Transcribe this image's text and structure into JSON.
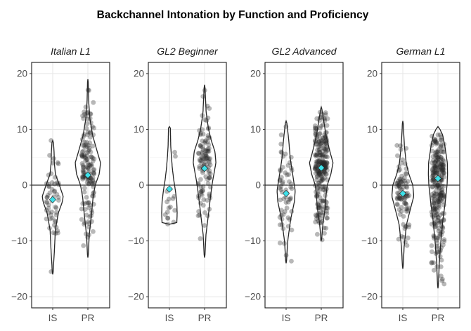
{
  "chart_data": {
    "type": "violin",
    "title": "Backchannel Intonation by Function and Proficiency",
    "categories": [
      "IS",
      "PR"
    ],
    "ylim": [
      -22,
      22
    ],
    "yticks": [
      -20,
      -10,
      0,
      10,
      20
    ],
    "reference_line": 0,
    "grid": true,
    "panels": [
      {
        "name": "Italian L1",
        "groups": [
          {
            "category": "IS",
            "min": -16,
            "max": 8,
            "mean": -2.6,
            "n": 55,
            "density": [
              [
                -16,
                0.02
              ],
              [
                -12,
                0.12
              ],
              [
                -8,
                0.2
              ],
              [
                -5,
                0.42
              ],
              [
                -3,
                0.72
              ],
              [
                -2,
                0.78
              ],
              [
                0,
                0.5
              ],
              [
                2,
                0.2
              ],
              [
                4,
                0.12
              ],
              [
                6,
                0.1
              ],
              [
                8,
                0.05
              ]
            ]
          },
          {
            "category": "PR",
            "min": -13,
            "max": 19,
            "mean": 1.8,
            "n": 150,
            "density": [
              [
                -13,
                0.02
              ],
              [
                -9,
                0.1
              ],
              [
                -5,
                0.28
              ],
              [
                -2,
                0.4
              ],
              [
                0,
                0.55
              ],
              [
                2,
                0.85
              ],
              [
                4,
                0.95
              ],
              [
                6,
                0.7
              ],
              [
                9,
                0.35
              ],
              [
                12,
                0.15
              ],
              [
                15,
                0.06
              ],
              [
                19,
                0.02
              ]
            ]
          }
        ]
      },
      {
        "name": "GL2 Beginner",
        "groups": [
          {
            "category": "IS",
            "min": -7,
            "max": 10.5,
            "mean": -0.7,
            "n": 16,
            "density": [
              [
                -7,
                0.55
              ],
              [
                -5,
                0.58
              ],
              [
                -3,
                0.55
              ],
              [
                -1,
                0.45
              ],
              [
                1,
                0.32
              ],
              [
                3,
                0.22
              ],
              [
                5,
                0.15
              ],
              [
                7,
                0.1
              ],
              [
                9,
                0.08
              ],
              [
                10.5,
                0.07
              ]
            ]
          },
          {
            "category": "PR",
            "min": -13,
            "max": 18,
            "mean": 3.0,
            "n": 110,
            "density": [
              [
                -13,
                0.02
              ],
              [
                -9,
                0.1
              ],
              [
                -5,
                0.3
              ],
              [
                -2,
                0.45
              ],
              [
                0,
                0.55
              ],
              [
                2,
                0.7
              ],
              [
                4,
                0.85
              ],
              [
                6,
                0.78
              ],
              [
                8,
                0.5
              ],
              [
                10,
                0.3
              ],
              [
                13,
                0.12
              ],
              [
                18,
                0.02
              ]
            ]
          }
        ]
      },
      {
        "name": "GL2 Advanced",
        "groups": [
          {
            "category": "IS",
            "min": -14,
            "max": 11.5,
            "mean": -1.5,
            "n": 60,
            "density": [
              [
                -14,
                0.02
              ],
              [
                -10,
                0.12
              ],
              [
                -6,
                0.35
              ],
              [
                -3,
                0.62
              ],
              [
                -1,
                0.68
              ],
              [
                1,
                0.55
              ],
              [
                3,
                0.42
              ],
              [
                5,
                0.3
              ],
              [
                8,
                0.2
              ],
              [
                11.5,
                0.04
              ]
            ]
          },
          {
            "category": "PR",
            "min": -10,
            "max": 14,
            "mean": 3.1,
            "n": 240,
            "density": [
              [
                -10,
                0.02
              ],
              [
                -7,
                0.12
              ],
              [
                -4,
                0.3
              ],
              [
                -2,
                0.35
              ],
              [
                0,
                0.45
              ],
              [
                2,
                0.72
              ],
              [
                4,
                0.88
              ],
              [
                6,
                0.65
              ],
              [
                9,
                0.35
              ],
              [
                12,
                0.15
              ],
              [
                14,
                0.02
              ]
            ]
          }
        ]
      },
      {
        "name": "German L1",
        "groups": [
          {
            "category": "IS",
            "min": -15,
            "max": 11.5,
            "mean": -1.5,
            "n": 90,
            "density": [
              [
                -15,
                0.02
              ],
              [
                -11,
                0.1
              ],
              [
                -7,
                0.28
              ],
              [
                -4,
                0.6
              ],
              [
                -2,
                0.82
              ],
              [
                0,
                0.75
              ],
              [
                2,
                0.45
              ],
              [
                4,
                0.25
              ],
              [
                7,
                0.12
              ],
              [
                11.5,
                0.02
              ]
            ]
          },
          {
            "category": "PR",
            "min": -18.5,
            "max": 10.5,
            "mean": 1.2,
            "n": 260,
            "density": [
              [
                -18.5,
                0.02
              ],
              [
                -14,
                0.1
              ],
              [
                -10,
                0.22
              ],
              [
                -6,
                0.38
              ],
              [
                -3,
                0.55
              ],
              [
                0,
                0.68
              ],
              [
                2,
                0.72
              ],
              [
                4,
                0.7
              ],
              [
                7,
                0.52
              ],
              [
                9,
                0.35
              ],
              [
                10.5,
                0.05
              ]
            ]
          }
        ]
      }
    ]
  }
}
